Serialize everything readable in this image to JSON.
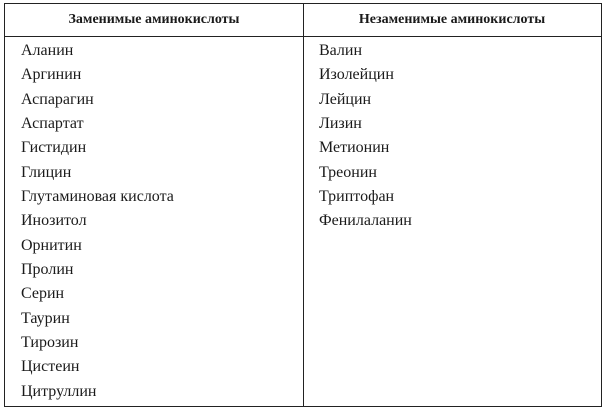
{
  "table": {
    "headers": [
      "Заменимые аминокислоты",
      "Незаменимые аминокислоты"
    ],
    "nonessential": [
      "Аланин",
      "Аргинин",
      "Аспарагин",
      "Аспартат",
      "Гистидин",
      "Глицин",
      "Глутаминовая кислота",
      "Инозитол",
      "Орнитин",
      "Пролин",
      "Серин",
      "Таурин",
      "Тирозин",
      "Цистеин",
      "Цитруллин"
    ],
    "essential": [
      "Валин",
      "Изолейцин",
      "Лейцин",
      "Лизин",
      "Метионин",
      "Треонин",
      "Триптофан",
      "Фенилаланин"
    ]
  }
}
